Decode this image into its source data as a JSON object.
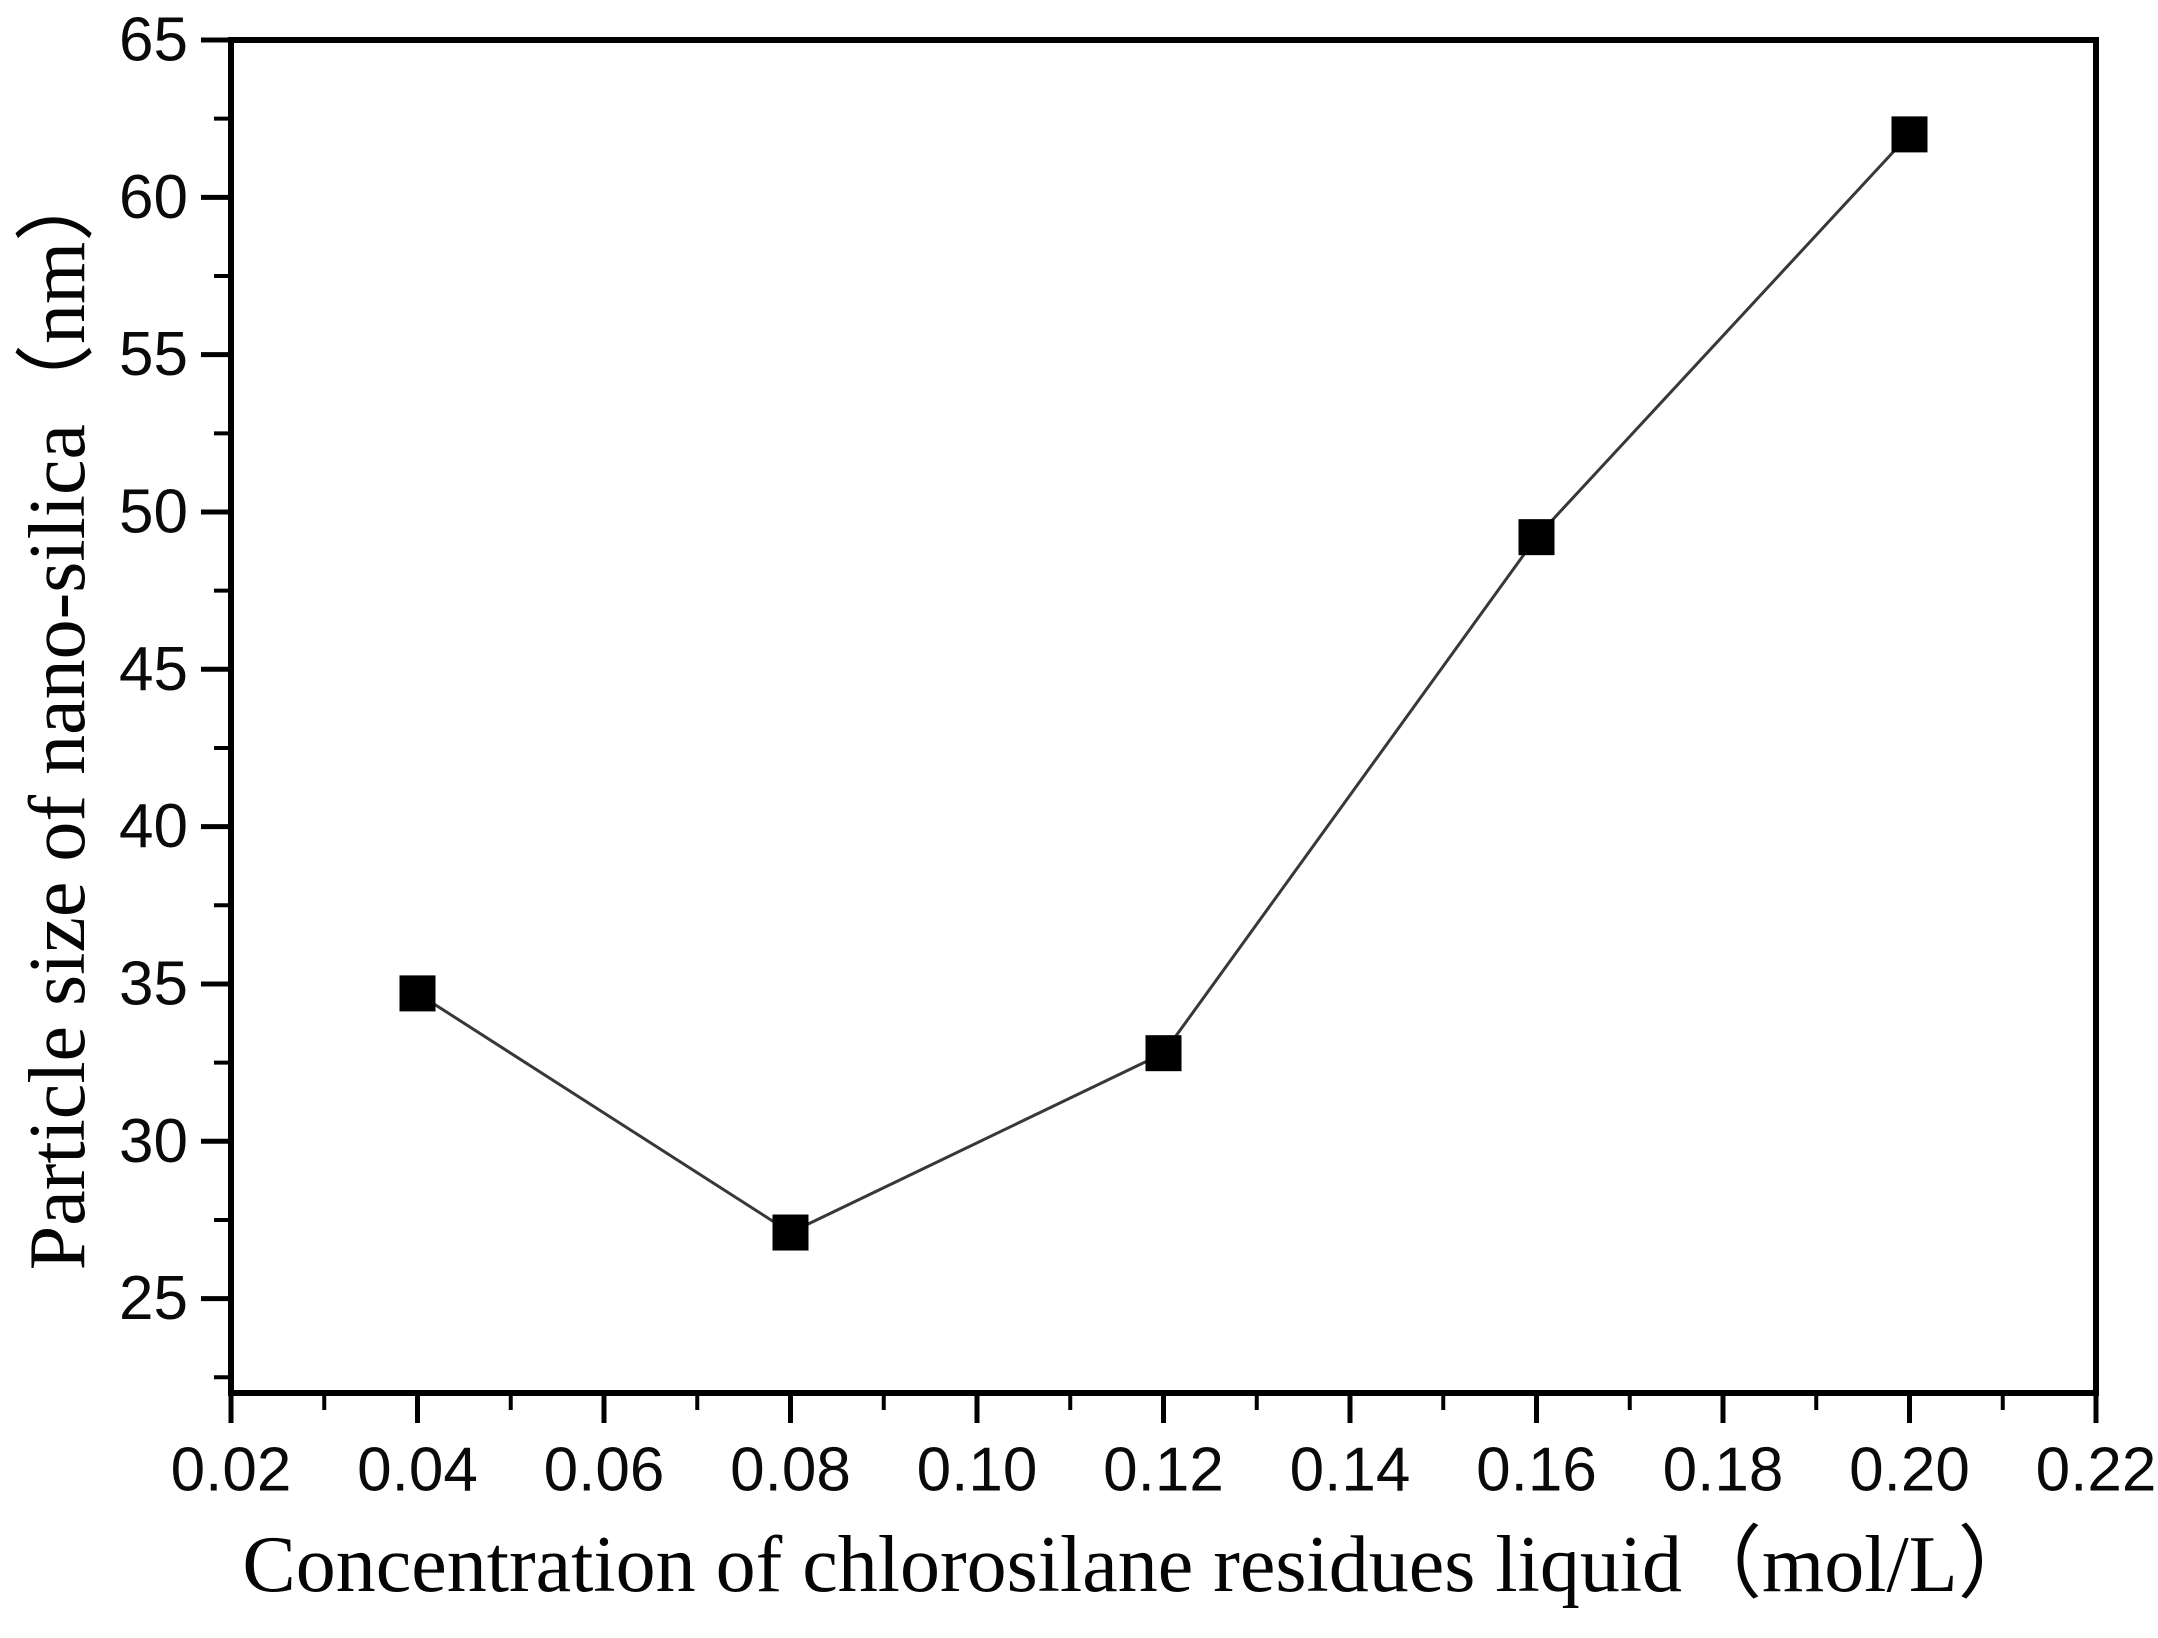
{
  "page": {
    "background_color": "#ffffff",
    "axis_color": "#000000"
  },
  "chart_data": {
    "type": "line",
    "title": "",
    "xlabel": "Concentration of chlorosilane residues liquid（mol/L）",
    "ylabel": "Particle size of nano-silica（nm）",
    "grid": false,
    "legend": null,
    "x_axis": {
      "min": 0.02,
      "max": 0.22,
      "major_ticks": [
        0.02,
        0.04,
        0.06,
        0.08,
        0.1,
        0.12,
        0.14,
        0.16,
        0.18,
        0.2,
        0.22
      ],
      "tick_labels": [
        "0.02",
        "0.04",
        "0.06",
        "0.08",
        "0.10",
        "0.12",
        "0.14",
        "0.16",
        "0.18",
        "0.20",
        "0.22"
      ],
      "minor_ticks": [
        0.03,
        0.05,
        0.07,
        0.09,
        0.11,
        0.13,
        0.15,
        0.17,
        0.19,
        0.21
      ]
    },
    "y_axis": {
      "min": 22,
      "max": 65,
      "major_ticks": [
        25,
        30,
        35,
        40,
        45,
        50,
        55,
        60,
        65
      ],
      "tick_labels": [
        "25",
        "30",
        "35",
        "40",
        "45",
        "50",
        "55",
        "60",
        "65"
      ],
      "minor_ticks": [
        22.5,
        27.5,
        32.5,
        37.5,
        42.5,
        47.5,
        52.5,
        57.5,
        62.5
      ]
    },
    "series": [
      {
        "name": "particle-size-vs-concentration",
        "marker": "square",
        "marker_color": "#000000",
        "line_color": "#383838",
        "x": [
          0.04,
          0.08,
          0.12,
          0.16,
          0.2
        ],
        "y": [
          34.7,
          27.1,
          32.8,
          49.2,
          62.0
        ]
      }
    ]
  }
}
